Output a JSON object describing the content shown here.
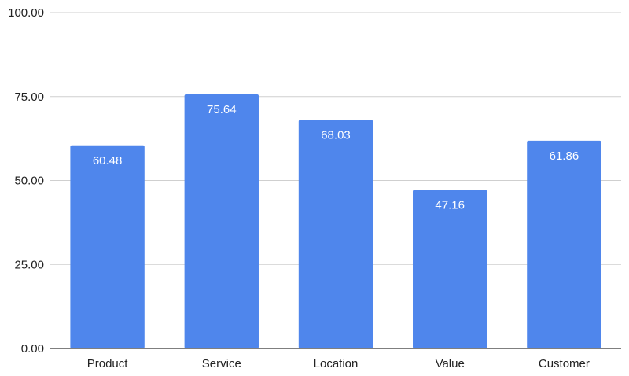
{
  "chart_data": {
    "type": "bar",
    "title": "",
    "xlabel": "",
    "ylabel": "",
    "categories": [
      "Product",
      "Service",
      "Location",
      "Value",
      "Customer"
    ],
    "values": [
      60.48,
      75.64,
      68.03,
      47.16,
      61.86
    ],
    "data_labels": [
      "60.48",
      "75.64",
      "68.03",
      "47.16",
      "61.86"
    ],
    "ylim": [
      0,
      100
    ],
    "yticks": [
      0,
      25,
      50,
      75,
      100
    ],
    "ytick_labels": [
      "0.00",
      "25.00",
      "50.00",
      "75.00",
      "100.00"
    ],
    "grid": true,
    "legend": "none",
    "bar_color": "#4f86ec"
  }
}
